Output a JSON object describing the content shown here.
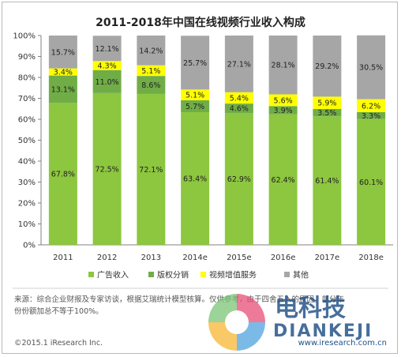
{
  "chart_data": {
    "type": "bar",
    "stacked": true,
    "title": "2011-2018年中国在线视频行业收入构成",
    "categories": [
      "2011",
      "2012",
      "2013",
      "2014e",
      "2015e",
      "2016e",
      "2017e",
      "2018e"
    ],
    "y_ticks": [
      "0%",
      "10%",
      "20%",
      "30%",
      "40%",
      "50%",
      "60%",
      "70%",
      "80%",
      "90%",
      "100%"
    ],
    "ylim": [
      0,
      100
    ],
    "grid": false,
    "legend_position": "bottom",
    "series": [
      {
        "name": "广告收入",
        "color": "#8dc63f",
        "values": [
          67.8,
          72.5,
          72.1,
          63.4,
          62.9,
          62.4,
          61.4,
          60.1
        ],
        "labels": [
          "67.8%",
          "72.5%",
          "72.1%",
          "63.4%",
          "62.9%",
          "62.4%",
          "61.4%",
          "60.1%"
        ]
      },
      {
        "name": "版权分销",
        "color": "#70ad47",
        "values": [
          13.1,
          11.0,
          8.6,
          5.7,
          4.6,
          3.9,
          3.5,
          3.3
        ],
        "labels": [
          "13.1%",
          "11.0%",
          "8.6%",
          "5.7%",
          "4.6%",
          "3.9%",
          "3.5%",
          "3.3%"
        ]
      },
      {
        "name": "视频增值服务",
        "color": "#ffff00",
        "values": [
          3.4,
          4.3,
          5.1,
          5.1,
          5.4,
          5.6,
          5.9,
          6.2
        ],
        "labels": [
          "3.4%",
          "4.3%",
          "5.1%",
          "5.1%",
          "5.4%",
          "5.6%",
          "5.9%",
          "6.2%"
        ]
      },
      {
        "name": "其他",
        "color": "#a6a6a6",
        "values": [
          15.7,
          12.1,
          14.2,
          25.7,
          27.1,
          28.1,
          29.2,
          30.5
        ],
        "labels": [
          "15.7%",
          "12.1%",
          "14.2%",
          "25.7%",
          "27.1%",
          "28.1%",
          "29.2%",
          "30.5%"
        ]
      }
    ]
  },
  "footer": {
    "note_line1": "来源：综合企业财报及专家访谈，根据艾瑞统计模型核算。仅供参考，由于四舍五入的原因，部分年",
    "note_line2": "份份额加总不等于100%。",
    "copyright": "©2015.1 iResearch Inc.",
    "url": "www.iresearch.com.cn"
  },
  "watermark": {
    "text_cn": "电科技",
    "text_en": "DIANKEJI"
  }
}
